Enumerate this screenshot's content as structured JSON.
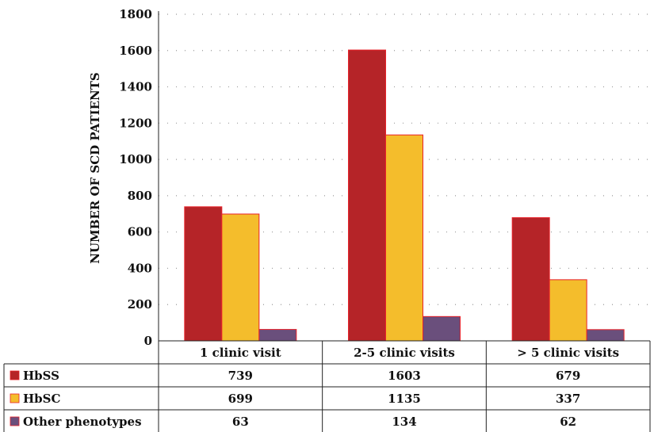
{
  "chart_data": {
    "type": "bar",
    "ylabel": "NUMBER OF SCD PATIENTS",
    "ylim": [
      0,
      1800
    ],
    "yticks": [
      0,
      200,
      400,
      600,
      800,
      1000,
      1200,
      1400,
      1600,
      1800
    ],
    "categories": [
      "1 clinic visit",
      "2-5 clinic visits",
      "> 5 clinic visits"
    ],
    "grid": true,
    "legend": "data-table",
    "series": [
      {
        "name": "HbSS",
        "color": "#b52428",
        "values": [
          739,
          1603,
          679
        ]
      },
      {
        "name": "HbSC",
        "color": "#f4bd2c",
        "values": [
          699,
          1135,
          337
        ]
      },
      {
        "name": "Other phenotypes",
        "color": "#6a4f7c",
        "values": [
          63,
          134,
          62
        ]
      }
    ]
  }
}
